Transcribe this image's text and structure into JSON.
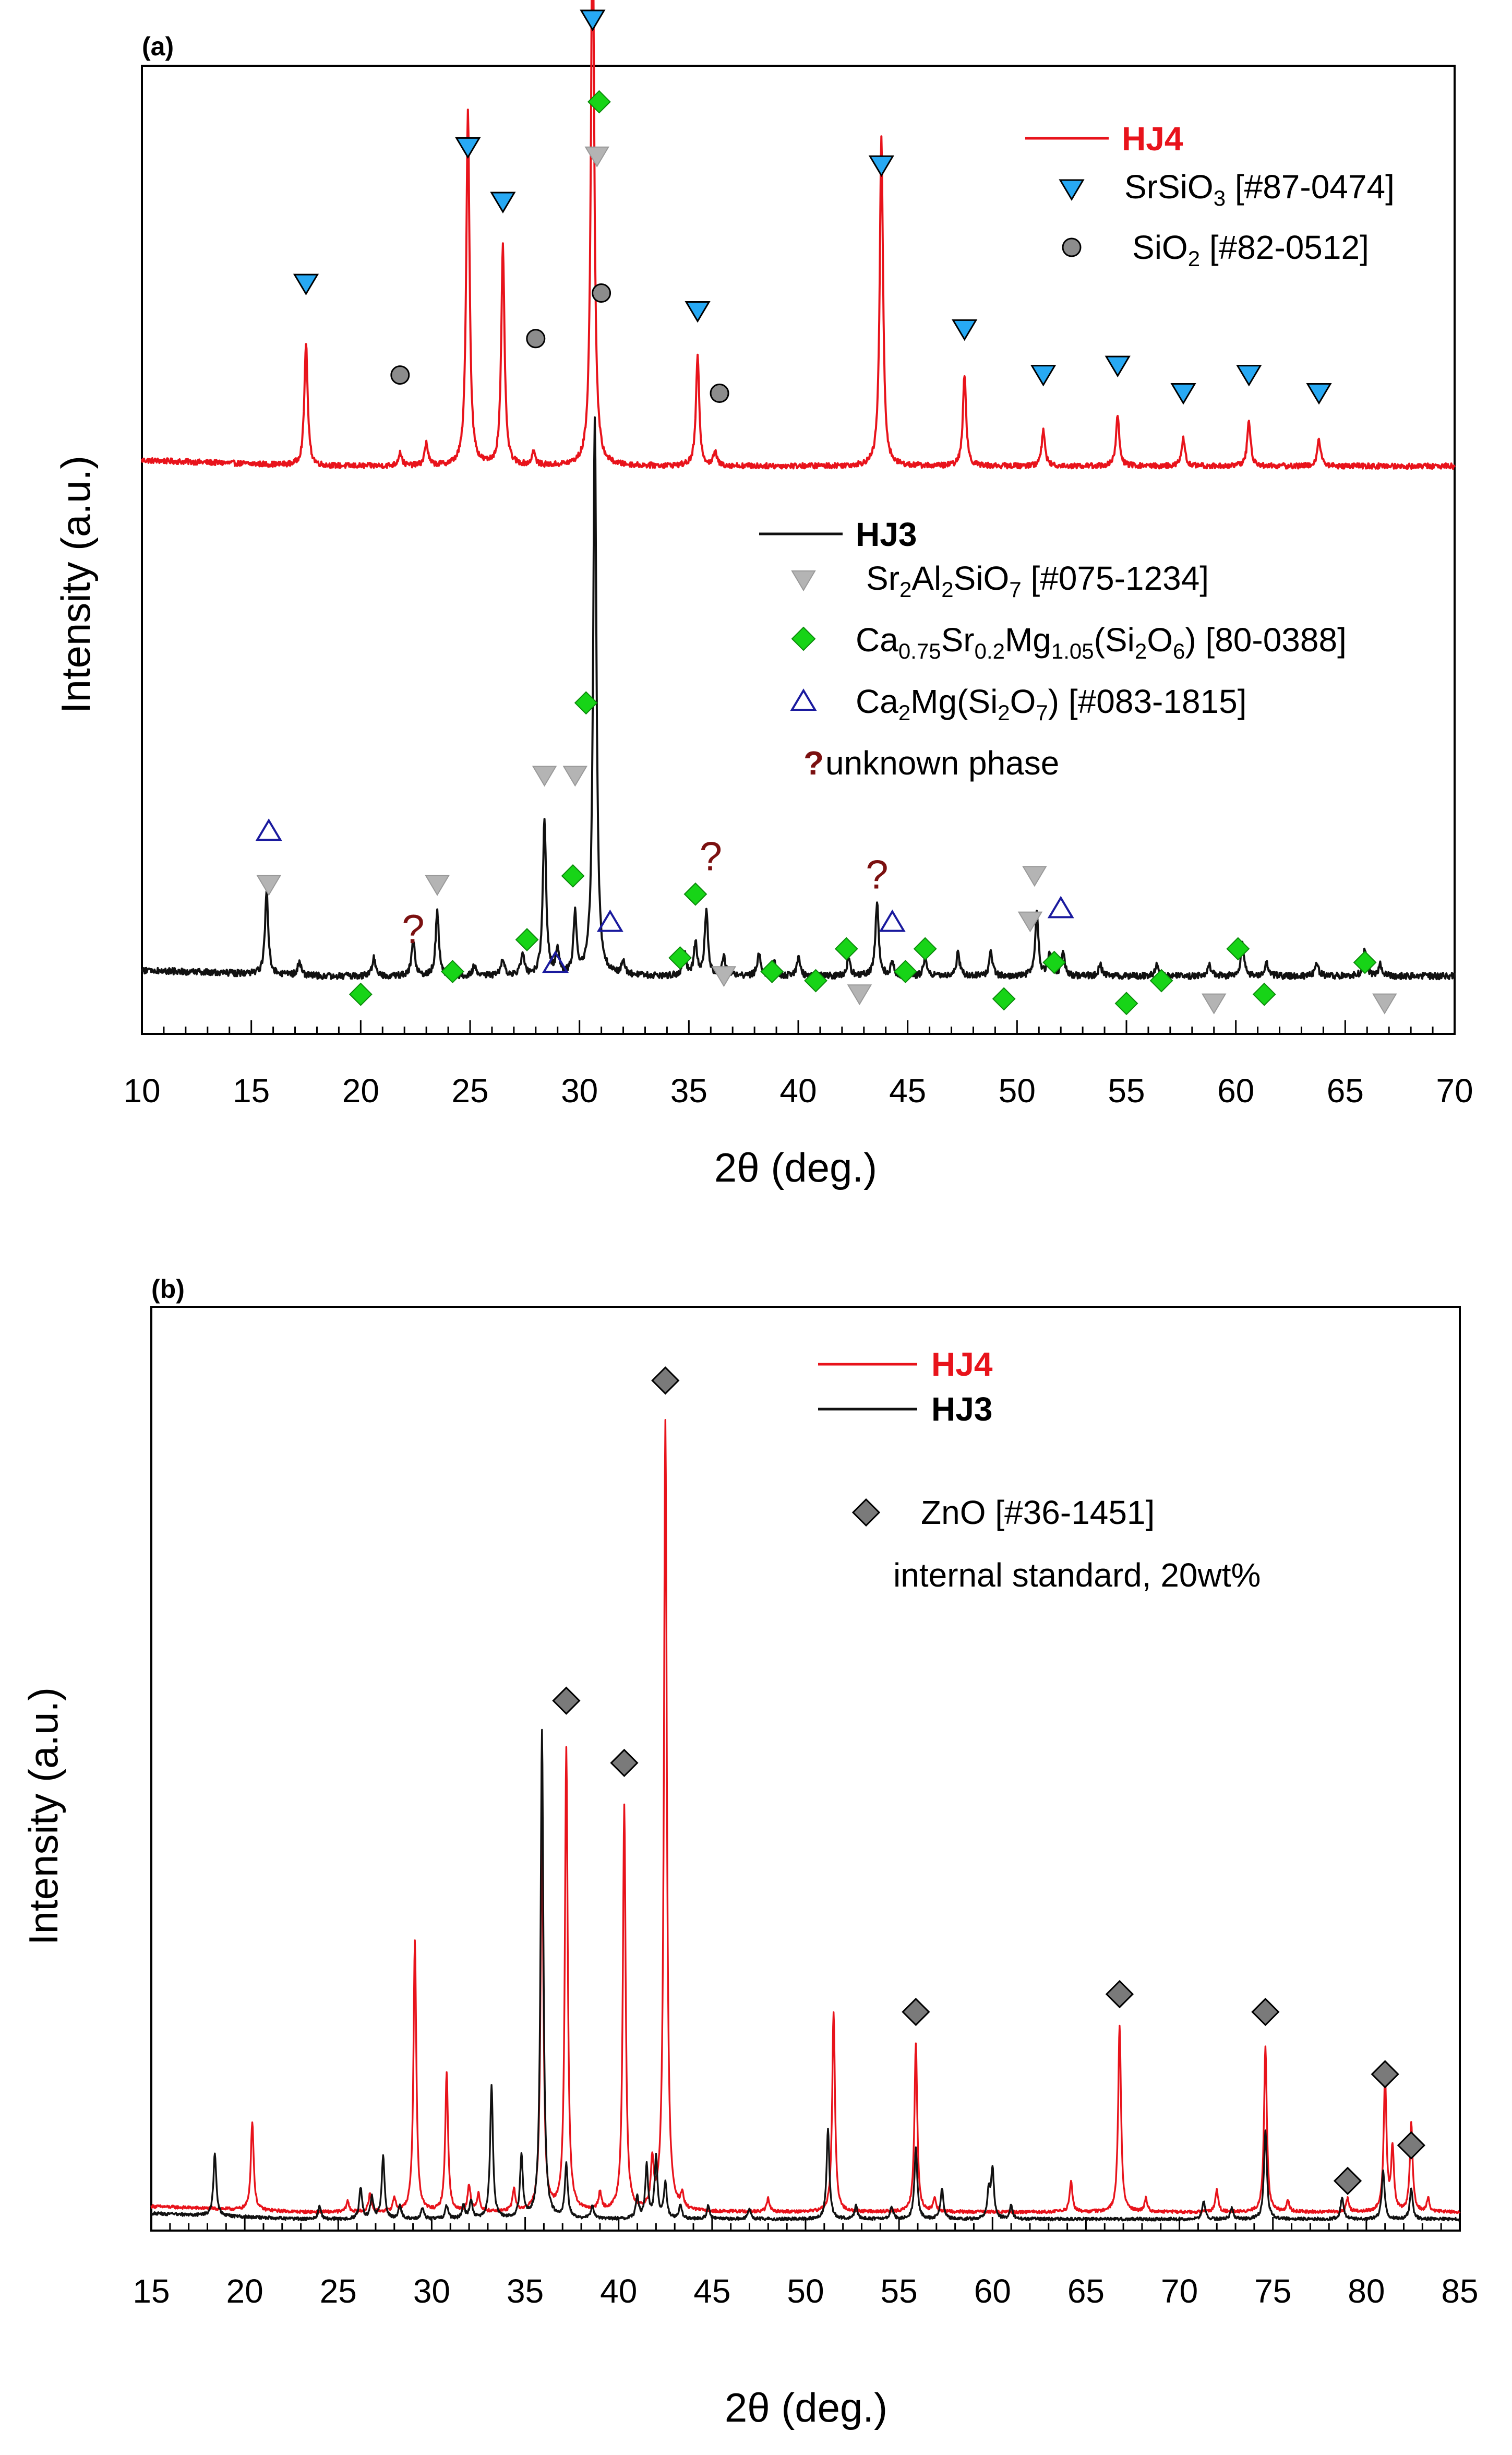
{
  "colors": {
    "hj4": "#e8131b",
    "hj3": "#111111",
    "srsio3": "#27a9f4",
    "sio2": "#8c8c8c",
    "sr2al2sio7": "#b4b4b4",
    "ca_sr_mg": "#17d417",
    "ca2mg": "#1a1a9e",
    "unknown": "#7b1010",
    "zno": "#7a7a7a"
  },
  "chart_data": [
    {
      "type": "line",
      "panel": "(a)",
      "xlabel": "2θ (deg.)",
      "ylabel": "Intensity (a.u.)",
      "xlim": [
        10,
        70
      ],
      "ylim": [
        0,
        100
      ],
      "xticks": [
        10,
        15,
        20,
        25,
        30,
        35,
        40,
        45,
        50,
        55,
        60,
        65,
        70
      ],
      "series": [
        {
          "name": "HJ4",
          "color_key": "hj4",
          "baseline": 62,
          "noise": 0.6,
          "peaks": [
            {
              "x": 17.5,
              "h": 13.5
            },
            {
              "x": 21.8,
              "h": 1.5
            },
            {
              "x": 23.0,
              "h": 2.5
            },
            {
              "x": 24.9,
              "h": 39
            },
            {
              "x": 26.5,
              "h": 24
            },
            {
              "x": 27.9,
              "h": 1.5
            },
            {
              "x": 30.6,
              "h": 62
            },
            {
              "x": 35.4,
              "h": 12
            },
            {
              "x": 36.2,
              "h": 1.5
            },
            {
              "x": 43.8,
              "h": 36
            },
            {
              "x": 47.6,
              "h": 10
            },
            {
              "x": 51.2,
              "h": 4
            },
            {
              "x": 54.6,
              "h": 5.5
            },
            {
              "x": 57.6,
              "h": 3
            },
            {
              "x": 60.6,
              "h": 5
            },
            {
              "x": 63.8,
              "h": 3
            }
          ]
        },
        {
          "name": "HJ3",
          "color_key": "hj3",
          "baseline": 6,
          "noise": 0.7,
          "peaks": [
            {
              "x": 15.7,
              "h": 9
            },
            {
              "x": 17.2,
              "h": 1.5
            },
            {
              "x": 20.6,
              "h": 2
            },
            {
              "x": 22.4,
              "h": 4
            },
            {
              "x": 23.5,
              "h": 7
            },
            {
              "x": 25.2,
              "h": 1.2
            },
            {
              "x": 26.5,
              "h": 1.8
            },
            {
              "x": 27.4,
              "h": 2.5
            },
            {
              "x": 28.4,
              "h": 17
            },
            {
              "x": 29.0,
              "h": 2.5
            },
            {
              "x": 29.8,
              "h": 6.5
            },
            {
              "x": 30.7,
              "h": 61
            },
            {
              "x": 32.0,
              "h": 1.5
            },
            {
              "x": 34.8,
              "h": 2.5
            },
            {
              "x": 35.3,
              "h": 3.5
            },
            {
              "x": 35.8,
              "h": 7
            },
            {
              "x": 36.6,
              "h": 2
            },
            {
              "x": 38.2,
              "h": 2.5
            },
            {
              "x": 38.9,
              "h": 1.5
            },
            {
              "x": 40.0,
              "h": 2
            },
            {
              "x": 42.3,
              "h": 2
            },
            {
              "x": 43.6,
              "h": 8
            },
            {
              "x": 44.3,
              "h": 1.5
            },
            {
              "x": 45.8,
              "h": 2
            },
            {
              "x": 47.3,
              "h": 2.5
            },
            {
              "x": 48.8,
              "h": 2.5
            },
            {
              "x": 50.9,
              "h": 7
            },
            {
              "x": 51.5,
              "h": 2.5
            },
            {
              "x": 52.1,
              "h": 2.5
            },
            {
              "x": 53.8,
              "h": 1.2
            },
            {
              "x": 56.4,
              "h": 1.5
            },
            {
              "x": 58.8,
              "h": 1.2
            },
            {
              "x": 60.3,
              "h": 3.5
            },
            {
              "x": 61.4,
              "h": 1.5
            },
            {
              "x": 63.7,
              "h": 1.5
            },
            {
              "x": 65.9,
              "h": 3
            },
            {
              "x": 66.6,
              "h": 1.2
            }
          ]
        }
      ],
      "markers": [
        {
          "phase": "SrSiO3",
          "symbol": "tri-down",
          "color_key": "srsio3",
          "points": [
            {
              "x": 17.5,
              "y": 82
            },
            {
              "x": 24.9,
              "y": 97
            },
            {
              "x": 26.5,
              "y": 91
            },
            {
              "x": 30.6,
              "y": 111
            },
            {
              "x": 35.4,
              "y": 79
            },
            {
              "x": 43.8,
              "y": 95
            },
            {
              "x": 47.6,
              "y": 77
            },
            {
              "x": 51.2,
              "y": 72
            },
            {
              "x": 54.6,
              "y": 73
            },
            {
              "x": 57.6,
              "y": 70
            },
            {
              "x": 60.6,
              "y": 72
            },
            {
              "x": 63.8,
              "y": 70
            }
          ]
        },
        {
          "phase": "SiO2",
          "symbol": "circle",
          "color_key": "sio2",
          "points": [
            {
              "x": 21.8,
              "y": 72
            },
            {
              "x": 28.0,
              "y": 76
            },
            {
              "x": 31.0,
              "y": 81
            },
            {
              "x": 36.4,
              "y": 70
            }
          ]
        },
        {
          "phase": "Sr2Al2SiO7",
          "symbol": "tri-down",
          "color_key": "sr2al2sio7",
          "points": [
            {
              "x": 29.8,
              "y": 28
            },
            {
              "x": 30.8,
              "y": 96
            },
            {
              "x": 15.8,
              "y": 16
            },
            {
              "x": 23.5,
              "y": 16
            },
            {
              "x": 28.4,
              "y": 28
            },
            {
              "x": 36.6,
              "y": 6
            },
            {
              "x": 42.8,
              "y": 4
            },
            {
              "x": 50.8,
              "y": 17
            },
            {
              "x": 50.6,
              "y": 12
            },
            {
              "x": 59.0,
              "y": 3
            },
            {
              "x": 66.8,
              "y": 3
            }
          ]
        },
        {
          "phase": "Ca0.75Sr0.2Mg1.05(Si2O6)",
          "symbol": "diamond",
          "color_key": "ca_sr_mg",
          "points": [
            {
              "x": 30.9,
              "y": 102
            },
            {
              "x": 30.3,
              "y": 36
            },
            {
              "x": 20.0,
              "y": 4
            },
            {
              "x": 24.2,
              "y": 6.5
            },
            {
              "x": 27.6,
              "y": 10
            },
            {
              "x": 29.7,
              "y": 17
            },
            {
              "x": 34.6,
              "y": 8
            },
            {
              "x": 35.3,
              "y": 15
            },
            {
              "x": 38.8,
              "y": 6.5
            },
            {
              "x": 40.8,
              "y": 5.5
            },
            {
              "x": 42.2,
              "y": 9
            },
            {
              "x": 44.9,
              "y": 6.5
            },
            {
              "x": 45.8,
              "y": 9
            },
            {
              "x": 49.4,
              "y": 3.5
            },
            {
              "x": 51.7,
              "y": 7.5
            },
            {
              "x": 55.0,
              "y": 3
            },
            {
              "x": 56.6,
              "y": 5.5
            },
            {
              "x": 60.1,
              "y": 9
            },
            {
              "x": 61.3,
              "y": 4
            },
            {
              "x": 65.9,
              "y": 7.5
            }
          ]
        },
        {
          "phase": "Ca2Mg(Si2O7)",
          "symbol": "tri-up-open",
          "color_key": "ca2mg",
          "points": [
            {
              "x": 15.8,
              "y": 22
            },
            {
              "x": 28.9,
              "y": 7.5
            },
            {
              "x": 31.4,
              "y": 12
            },
            {
              "x": 44.3,
              "y": 12
            },
            {
              "x": 52.0,
              "y": 13.5
            }
          ]
        },
        {
          "phase": "unknown phase",
          "symbol": "question",
          "color_key": "unknown",
          "points": [
            {
              "x": 22.4,
              "y": 11
            },
            {
              "x": 36.0,
              "y": 19
            },
            {
              "x": 43.6,
              "y": 17
            }
          ]
        }
      ],
      "legends": {
        "hj4": {
          "name": "HJ4"
        },
        "srsio3": {
          "base": "SrSiO",
          "sub1": "3",
          "tail": " [#87-0474]"
        },
        "sio2": {
          "base": "SiO",
          "sub1": "2",
          "tail": " [#82-0512]"
        },
        "hj3": {
          "name": "HJ3"
        },
        "sr2al2sio7": {
          "p1": "Sr",
          "s1": "2",
          "p2": "Al",
          "s2": "2",
          "p3": "SiO",
          "s3": "7",
          "tail": " [#075-1234]"
        },
        "ca_sr_mg": {
          "p1": "Ca",
          "s1": "0.75",
          "p2": "Sr",
          "s2": "0.2",
          "p3": "Mg",
          "s3": "1.05",
          "p4": "(Si",
          "s4": "2",
          "p5": "O",
          "s5": "6",
          "tail": ") [80-0388]"
        },
        "ca2mg": {
          "p1": "Ca",
          "s1": "2",
          "p2": "Mg(Si",
          "s2": "2",
          "p3": "O",
          "s3": "7",
          "tail": ") [#083-1815]"
        },
        "unknown": {
          "symbol": "?",
          "label": " unknown phase"
        }
      }
    },
    {
      "type": "line",
      "panel": "(b)",
      "xlabel": "2θ (deg.)",
      "ylabel": "Intensity (a.u.)",
      "xlim": [
        15,
        85
      ],
      "ylim": [
        0,
        100
      ],
      "xticks": [
        15,
        20,
        25,
        30,
        35,
        40,
        45,
        50,
        55,
        60,
        65,
        70,
        75,
        80,
        85
      ],
      "series": [
        {
          "name": "HJ4",
          "color_key": "hj4",
          "baseline": 1.5,
          "noise": 0.35,
          "peaks": [
            {
              "x": 20.4,
              "h": 10
            },
            {
              "x": 25.5,
              "h": 1.2
            },
            {
              "x": 26.7,
              "h": 2
            },
            {
              "x": 28.0,
              "h": 1.5
            },
            {
              "x": 29.1,
              "h": 30.5
            },
            {
              "x": 30.8,
              "h": 15.5
            },
            {
              "x": 32.0,
              "h": 3
            },
            {
              "x": 32.5,
              "h": 2
            },
            {
              "x": 34.4,
              "h": 2.5
            },
            {
              "x": 35.9,
              "h": 43
            },
            {
              "x": 37.2,
              "h": 52
            },
            {
              "x": 39.0,
              "h": 2
            },
            {
              "x": 40.3,
              "h": 45.5
            },
            {
              "x": 41.8,
              "h": 5
            },
            {
              "x": 42.5,
              "h": 89
            },
            {
              "x": 43.4,
              "h": 1.5
            },
            {
              "x": 48.0,
              "h": 1.5
            },
            {
              "x": 51.5,
              "h": 22.5
            },
            {
              "x": 55.9,
              "h": 19
            },
            {
              "x": 56.9,
              "h": 1.5
            },
            {
              "x": 64.2,
              "h": 3.5
            },
            {
              "x": 66.8,
              "h": 21
            },
            {
              "x": 68.2,
              "h": 1.5
            },
            {
              "x": 72.0,
              "h": 2.5
            },
            {
              "x": 74.6,
              "h": 18.5
            },
            {
              "x": 75.8,
              "h": 1.2
            },
            {
              "x": 79.0,
              "h": 1.5
            },
            {
              "x": 81.0,
              "h": 15
            },
            {
              "x": 81.4,
              "h": 7
            },
            {
              "x": 82.4,
              "h": 10
            },
            {
              "x": 83.3,
              "h": 1.5
            }
          ]
        },
        {
          "name": "HJ3",
          "color_key": "hj3",
          "baseline": 0.7,
          "noise": 0.35,
          "peaks": [
            {
              "x": 18.4,
              "h": 7
            },
            {
              "x": 24.0,
              "h": 1.5
            },
            {
              "x": 26.2,
              "h": 3.5
            },
            {
              "x": 26.8,
              "h": 2.5
            },
            {
              "x": 27.4,
              "h": 7
            },
            {
              "x": 28.3,
              "h": 1.5
            },
            {
              "x": 29.5,
              "h": 1.2
            },
            {
              "x": 30.8,
              "h": 1.5
            },
            {
              "x": 31.7,
              "h": 1.5
            },
            {
              "x": 32.1,
              "h": 2
            },
            {
              "x": 33.2,
              "h": 15
            },
            {
              "x": 34.8,
              "h": 7
            },
            {
              "x": 35.9,
              "h": 55
            },
            {
              "x": 37.2,
              "h": 6
            },
            {
              "x": 38.6,
              "h": 1.5
            },
            {
              "x": 41.0,
              "h": 2.5
            },
            {
              "x": 41.5,
              "h": 6
            },
            {
              "x": 42.0,
              "h": 7
            },
            {
              "x": 42.5,
              "h": 4
            },
            {
              "x": 43.3,
              "h": 1.5
            },
            {
              "x": 44.8,
              "h": 1.5
            },
            {
              "x": 47.0,
              "h": 1.2
            },
            {
              "x": 51.2,
              "h": 10
            },
            {
              "x": 52.7,
              "h": 1.5
            },
            {
              "x": 54.6,
              "h": 1.5
            },
            {
              "x": 55.9,
              "h": 8
            },
            {
              "x": 57.3,
              "h": 3.5
            },
            {
              "x": 59.8,
              "h": 3
            },
            {
              "x": 60.0,
              "h": 5.5
            },
            {
              "x": 61.0,
              "h": 1.5
            },
            {
              "x": 71.3,
              "h": 2
            },
            {
              "x": 72.8,
              "h": 1.2
            },
            {
              "x": 74.6,
              "h": 10
            },
            {
              "x": 78.7,
              "h": 2.5
            },
            {
              "x": 80.9,
              "h": 5.5
            },
            {
              "x": 82.4,
              "h": 3.5
            }
          ]
        }
      ],
      "markers": [
        {
          "phase": "ZnO",
          "symbol": "diamond",
          "color_key": "zno",
          "points": [
            {
              "x": 37.2,
              "y": 59
            },
            {
              "x": 40.3,
              "y": 52
            },
            {
              "x": 42.5,
              "y": 95
            },
            {
              "x": 55.9,
              "y": 24
            },
            {
              "x": 66.8,
              "y": 26
            },
            {
              "x": 74.6,
              "y": 24
            },
            {
              "x": 79.0,
              "y": 5
            },
            {
              "x": 81.0,
              "y": 17
            },
            {
              "x": 82.4,
              "y": 9
            }
          ]
        }
      ],
      "legends": {
        "hj4": {
          "name": "HJ4"
        },
        "hj3": {
          "name": "HJ3"
        },
        "zno": {
          "line1": "ZnO [#36-1451]",
          "line2": "internal standard, 20wt%"
        }
      }
    }
  ]
}
